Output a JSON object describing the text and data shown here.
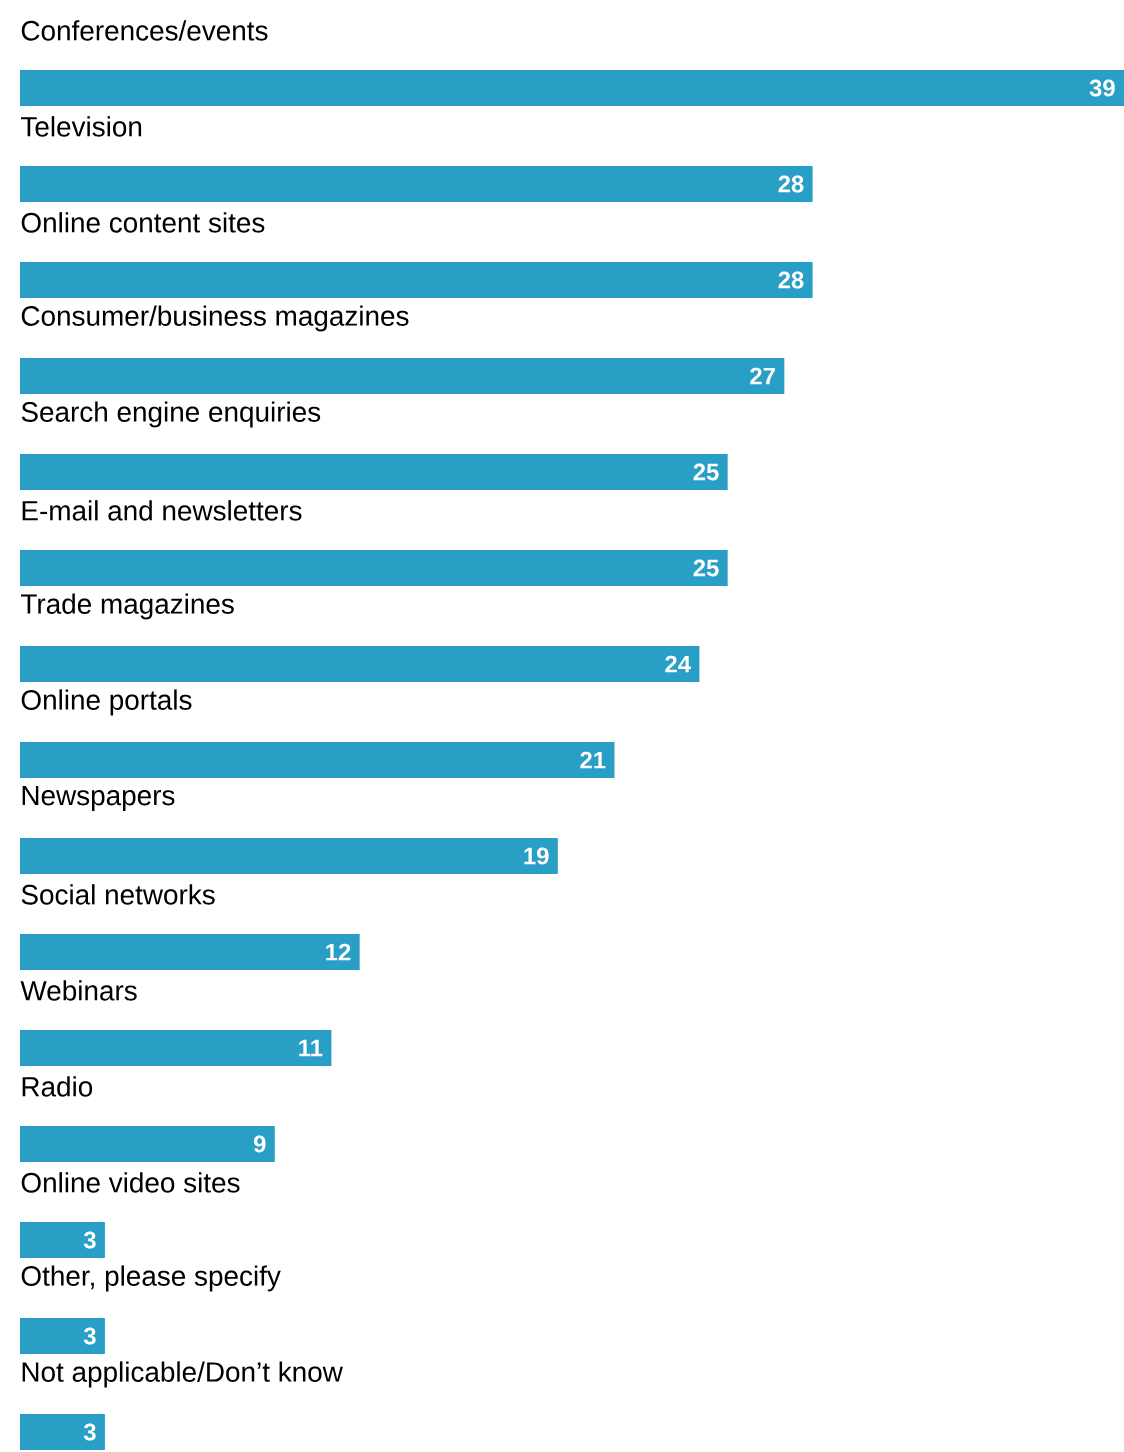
{
  "chart_data": {
    "type": "bar",
    "orientation": "horizontal",
    "color": "#2a9fc6",
    "data_labels": true,
    "categories": [
      "Conferences/events",
      "Television",
      "Online content sites",
      "Consumer/business magazines",
      "Search engine enquiries",
      "E-mail and newsletters",
      "Trade magazines",
      "Online portals",
      "Newspapers",
      "Social networks",
      "Webinars",
      "Radio",
      "Online video sites",
      "Other, please specify",
      "Not applicable/Don’t know"
    ],
    "values": [
      39,
      28,
      28,
      27,
      25,
      25,
      24,
      21,
      19,
      12,
      11,
      9,
      3,
      3,
      3
    ]
  }
}
